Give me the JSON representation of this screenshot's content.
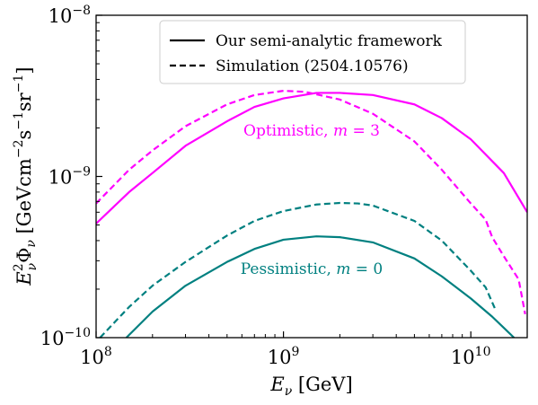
{
  "chart_data": {
    "type": "line",
    "x_scale": "log",
    "y_scale": "log",
    "xlim": [
      100000000.0,
      20000000000.0
    ],
    "ylim": [
      1e-10,
      1e-08
    ],
    "xlabel": "E_ν [GeV]",
    "ylabel": "E_ν^2 Φ_ν [GeV cm^-2 s^-1 sr^-1]",
    "x_ticks": [
      {
        "value": 100000000.0,
        "base": "10",
        "exp": "8"
      },
      {
        "value": 1000000000.0,
        "base": "10",
        "exp": "9"
      },
      {
        "value": 10000000000.0,
        "base": "10",
        "exp": "10"
      }
    ],
    "y_ticks": [
      {
        "value": 1e-10,
        "base": "10",
        "exp": "−10"
      },
      {
        "value": 1e-09,
        "base": "10",
        "exp": "−9"
      },
      {
        "value": 1e-08,
        "base": "10",
        "exp": "−8"
      }
    ],
    "grid": false,
    "legend": {
      "position": "top-center",
      "entries": [
        {
          "style": "solid",
          "label": "Our semi-analytic framework"
        },
        {
          "style": "dashed",
          "label": "Simulation (2504.10576)"
        }
      ]
    },
    "annotations": [
      {
        "text": "Optimistic, m = 3",
        "color": "#ff00ff"
      },
      {
        "text": "Pessimistic, m = 0",
        "color": "#008080"
      }
    ],
    "series": [
      {
        "group": "optimistic",
        "style": "solid",
        "color": "#ff00ff",
        "x": [
          100000000.0,
          150000000.0,
          200000000.0,
          300000000.0,
          500000000.0,
          700000000.0,
          1000000000.0,
          1500000000.0,
          2000000000.0,
          3000000000.0,
          5000000000.0,
          7000000000.0,
          10000000000.0,
          15000000000.0,
          20000000000.0
        ],
        "y": [
          5.1e-10,
          8e-10,
          1.05e-09,
          1.55e-09,
          2.2e-09,
          2.7e-09,
          3.05e-09,
          3.3e-09,
          3.3e-09,
          3.2e-09,
          2.8e-09,
          2.3e-09,
          1.7e-09,
          1.05e-09,
          6e-10
        ]
      },
      {
        "group": "optimistic",
        "style": "dashed",
        "color": "#ff00ff",
        "x": [
          100000000.0,
          150000000.0,
          200000000.0,
          300000000.0,
          500000000.0,
          700000000.0,
          1000000000.0,
          1300000000.0,
          2000000000.0,
          3000000000.0,
          5000000000.0,
          7000000000.0,
          10000000000.0,
          12000000000.0,
          13000000000.0,
          15000000000.0,
          18000000000.0,
          19500000000.0
        ],
        "y": [
          6.8e-10,
          1.1e-09,
          1.45e-09,
          2.05e-09,
          2.8e-09,
          3.2e-09,
          3.4e-09,
          3.35e-09,
          3e-09,
          2.45e-09,
          1.65e-09,
          1.1e-09,
          6.8e-10,
          5.4e-10,
          4.2e-10,
          3.2e-10,
          2.3e-10,
          1.4e-10
        ]
      },
      {
        "group": "pessimistic",
        "style": "solid",
        "color": "#008080",
        "x": [
          145000000.0,
          200000000.0,
          300000000.0,
          500000000.0,
          700000000.0,
          1000000000.0,
          1500000000.0,
          2000000000.0,
          3000000000.0,
          5000000000.0,
          7000000000.0,
          10000000000.0,
          13000000000.0,
          15000000000.0,
          17000000000.0
        ],
        "y": [
          1e-10,
          1.45e-10,
          2.1e-10,
          2.95e-10,
          3.55e-10,
          4.05e-10,
          4.25e-10,
          4.2e-10,
          3.9e-10,
          3.1e-10,
          2.4e-10,
          1.75e-10,
          1.35e-10,
          1.15e-10,
          1e-10
        ]
      },
      {
        "group": "pessimistic",
        "style": "dashed",
        "color": "#008080",
        "x": [
          105000000.0,
          150000000.0,
          200000000.0,
          300000000.0,
          500000000.0,
          700000000.0,
          1000000000.0,
          1500000000.0,
          2000000000.0,
          2500000000.0,
          3000000000.0,
          5000000000.0,
          7000000000.0,
          10000000000.0,
          12000000000.0,
          13500000000.0
        ],
        "y": [
          1e-10,
          1.55e-10,
          2.1e-10,
          2.95e-10,
          4.3e-10,
          5.3e-10,
          6.1e-10,
          6.7e-10,
          6.85e-10,
          6.8e-10,
          6.6e-10,
          5.3e-10,
          4e-10,
          2.6e-10,
          2.05e-10,
          1.5e-10
        ]
      }
    ]
  }
}
